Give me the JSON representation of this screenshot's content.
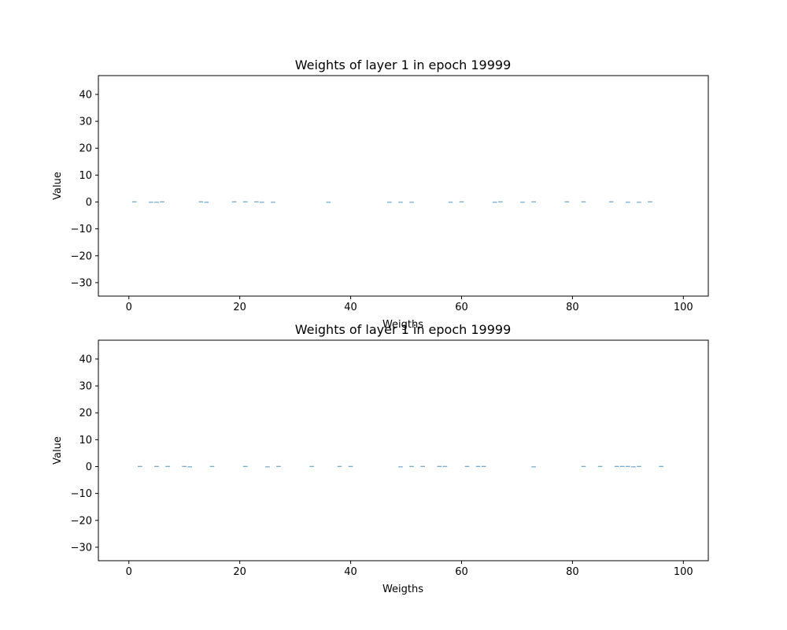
{
  "chart_data": [
    {
      "type": "bar",
      "title": "Weights of layer 1 in epoch 19999",
      "xlabel": "Weigths",
      "ylabel": "Value",
      "xlim": [
        -5.5,
        104.5
      ],
      "ylim": [
        -35,
        47
      ],
      "xticks": [
        0,
        20,
        40,
        60,
        80,
        100
      ],
      "yticks": [
        -30,
        -20,
        -10,
        0,
        10,
        20,
        30,
        40
      ],
      "grid": false,
      "bar_color": "#1f77b4",
      "x": [
        1,
        4,
        5,
        6,
        13,
        14,
        19,
        21,
        23,
        24,
        26,
        36,
        47,
        49,
        51,
        58,
        60,
        66,
        67,
        71,
        73,
        79,
        82,
        87,
        90,
        92,
        94
      ],
      "values": [
        0.2,
        -0.2,
        -0.2,
        0.2,
        0.2,
        -0.2,
        0.2,
        0.2,
        0.2,
        -0.2,
        -0.2,
        -0.2,
        -0.2,
        -0.2,
        -0.2,
        -0.2,
        0.2,
        -0.2,
        0.2,
        -0.2,
        0.2,
        0.2,
        0.2,
        0.2,
        -0.2,
        -0.2,
        0.2
      ]
    },
    {
      "type": "bar",
      "title": "Weights of layer 1 in epoch 19999",
      "xlabel": "Weigths",
      "ylabel": "Value",
      "xlim": [
        -5.5,
        104.5
      ],
      "ylim": [
        -35,
        47
      ],
      "xticks": [
        0,
        20,
        40,
        60,
        80,
        100
      ],
      "yticks": [
        -30,
        -20,
        -10,
        0,
        10,
        20,
        30,
        40
      ],
      "grid": false,
      "bar_color": "#1f77b4",
      "x": [
        2,
        5,
        7,
        10,
        11,
        15,
        21,
        25,
        27,
        33,
        38,
        40,
        49,
        51,
        53,
        56,
        57,
        61,
        63,
        64,
        73,
        82,
        85,
        88,
        89,
        90,
        91,
        92,
        96
      ],
      "values": [
        0.2,
        0.2,
        0.2,
        0.2,
        -0.2,
        0.2,
        0.2,
        -0.2,
        0.2,
        0.2,
        0.2,
        0.2,
        -0.2,
        0.2,
        0.2,
        0.2,
        0.2,
        0.2,
        0.2,
        0.2,
        -0.2,
        0.2,
        0.2,
        0.2,
        0.2,
        0.2,
        -0.2,
        0.2,
        0.2
      ]
    }
  ]
}
